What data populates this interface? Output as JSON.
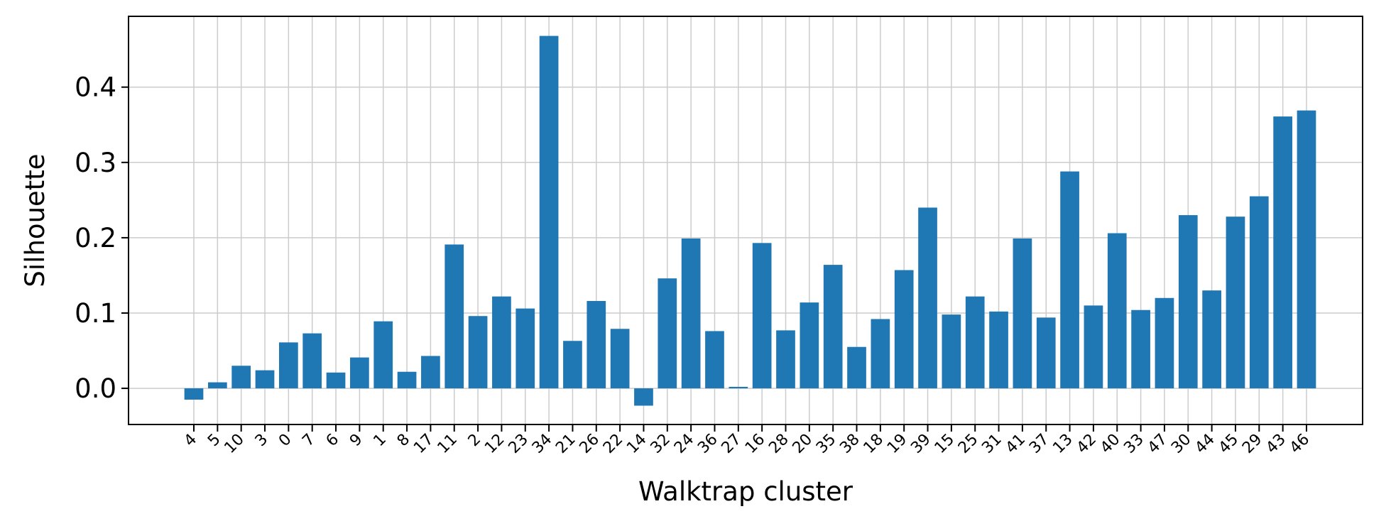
{
  "chart_data": {
    "type": "bar",
    "title": "",
    "xlabel": "Walktrap cluster",
    "ylabel": "Silhouette",
    "categories": [
      "4",
      "5",
      "10",
      "3",
      "0",
      "7",
      "6",
      "9",
      "1",
      "8",
      "17",
      "11",
      "2",
      "12",
      "23",
      "34",
      "21",
      "26",
      "22",
      "14",
      "32",
      "24",
      "36",
      "27",
      "16",
      "28",
      "20",
      "35",
      "38",
      "18",
      "19",
      "39",
      "15",
      "25",
      "31",
      "41",
      "37",
      "13",
      "42",
      "40",
      "33",
      "47",
      "30",
      "44",
      "45",
      "29",
      "43",
      "46"
    ],
    "values": [
      -0.015,
      0.008,
      0.03,
      0.024,
      0.061,
      0.073,
      0.021,
      0.041,
      0.089,
      0.022,
      0.043,
      0.191,
      0.096,
      0.122,
      0.106,
      0.468,
      0.063,
      0.116,
      0.079,
      -0.023,
      0.146,
      0.199,
      0.076,
      0.002,
      0.193,
      0.077,
      0.114,
      0.164,
      0.055,
      0.092,
      0.157,
      0.24,
      0.098,
      0.122,
      0.102,
      0.199,
      0.094,
      0.288,
      0.11,
      0.206,
      0.104,
      0.12,
      0.23,
      0.13,
      0.228,
      0.255,
      0.361,
      0.369
    ],
    "yticks": [
      0.0,
      0.1,
      0.2,
      0.3,
      0.4
    ],
    "ytick_labels": [
      "0.0",
      "0.1",
      "0.2",
      "0.3",
      "0.4"
    ],
    "ylim": [
      -0.048,
      0.494
    ],
    "grid": true,
    "bar_color": "#1f77b4",
    "grid_color": "#cccccc"
  }
}
